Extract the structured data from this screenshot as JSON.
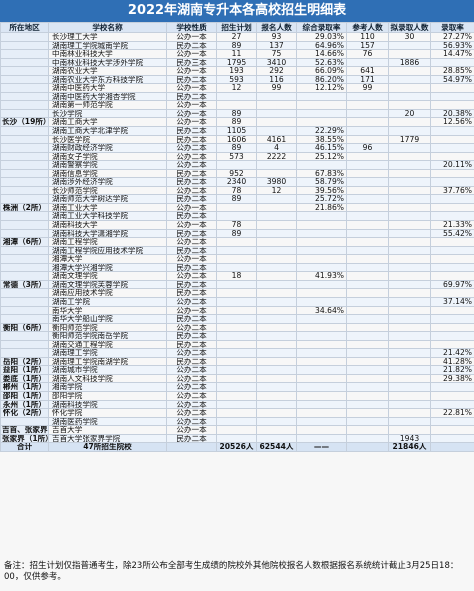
{
  "title": "2022年湖南专升本各高校招生明细表",
  "headers": [
    "所在地区",
    "学校名称",
    "学校性质",
    "招生计划",
    "报名人数",
    "综合录取率",
    "参考人数",
    "拟录取人数",
    "录取率"
  ],
  "rows": [
    [
      "",
      "长沙理工大学",
      "公办一本",
      "27",
      "93",
      "29.03%",
      "110",
      "30",
      "27.27%"
    ],
    [
      "",
      "湖南理工学院城南学院",
      "民办二本",
      "89",
      "137",
      "64.96%",
      "157",
      "",
      "56.93%"
    ],
    [
      "",
      "中南林业科技大学",
      "公办一本",
      "11",
      "75",
      "14.66%",
      "76",
      "",
      "14.47%"
    ],
    [
      "",
      "中南林业科技大学涉外学院",
      "民办三本",
      "1795",
      "3410",
      "52.63%",
      "",
      "1886",
      ""
    ],
    [
      "",
      "湖南农业大学",
      "公办一本",
      "193",
      "292",
      "66.09%",
      "641",
      "",
      "28.85%"
    ],
    [
      "",
      "湖南农业大学东方科技学院",
      "民办二本",
      "593",
      "116",
      "86.20%",
      "171",
      "",
      "54.97%"
    ],
    [
      "",
      "湖南中医药大学",
      "公办一本",
      "12",
      "99",
      "12.12%",
      "99",
      "",
      ""
    ],
    [
      "",
      "湖南中医药大学湘杏学院",
      "民办二本",
      "",
      "",
      "",
      "",
      "",
      ""
    ],
    [
      "",
      "湖南第一师范学院",
      "公办一本",
      "",
      "",
      "",
      "",
      "",
      ""
    ],
    [
      "",
      "长沙学院",
      "公办一本",
      "89",
      "",
      "",
      "",
      "20",
      "20.38%"
    ],
    [
      "长沙（19所）",
      "湖南工商大学",
      "公办一本",
      "89",
      "",
      "",
      "",
      "",
      "12.56%"
    ],
    [
      "",
      "湖南工商大学北津学院",
      "民办二本",
      "1105",
      "",
      "22.29%",
      "",
      "",
      ""
    ],
    [
      "",
      "长沙医学院",
      "民办二本",
      "1606",
      "4161",
      "38.55%",
      "",
      "1779",
      ""
    ],
    [
      "",
      "湖南财政经济学院",
      "公办二本",
      "89",
      "4",
      "46.15%",
      "96",
      "",
      ""
    ],
    [
      "",
      "湖南女子学院",
      "公办二本",
      "573",
      "2222",
      "25.12%",
      "",
      "",
      ""
    ],
    [
      "",
      "湖南警察学院",
      "公办二本",
      "",
      "",
      "",
      "",
      "",
      "20.11%"
    ],
    [
      "",
      "湖南信息学院",
      "民办二本",
      "952",
      "",
      "67.83%",
      "",
      "",
      ""
    ],
    [
      "",
      "湖南涉外经济学院",
      "民办二本",
      "2340",
      "3980",
      "58.79%",
      "",
      "",
      ""
    ],
    [
      "",
      "长沙师范学院",
      "公办二本",
      "78",
      "12",
      "39.56%",
      "",
      "",
      "37.76%"
    ],
    [
      "",
      "湖南师范大学树达学院",
      "民办二本",
      "89",
      "",
      "25.72%",
      "",
      "",
      ""
    ],
    [
      "株洲（2所）",
      "湖南工业大学",
      "公办一本",
      "",
      "",
      "21.86%",
      "",
      "",
      ""
    ],
    [
      "",
      "湖南工业大学科技学院",
      "民办二本",
      "",
      "",
      "",
      "",
      "",
      ""
    ],
    [
      "",
      "湖南科技大学",
      "公办一本",
      "78",
      "",
      "",
      "",
      "",
      "21.33%"
    ],
    [
      "",
      "湖南科技大学潇湘学院",
      "民办二本",
      "89",
      "",
      "",
      "",
      "",
      "55.42%"
    ],
    [
      "湘潭（6所）",
      "湖南工程学院",
      "公办二本",
      "",
      "",
      "",
      "",
      "",
      ""
    ],
    [
      "",
      "湖南工程学院应用技术学院",
      "民办二本",
      "",
      "",
      "",
      "",
      "",
      ""
    ],
    [
      "",
      "湘潭大学",
      "公办一本",
      "",
      "",
      "",
      "",
      "",
      ""
    ],
    [
      "",
      "湘潭大学兴湘学院",
      "民办二本",
      "",
      "",
      "",
      "",
      "",
      ""
    ],
    [
      "",
      "湖南文理学院",
      "公办二本",
      "18",
      "",
      "41.93%",
      "",
      "",
      ""
    ],
    [
      "常德（3所）",
      "湖南文理学院芙蓉学院",
      "民办二本",
      "",
      "",
      "",
      "",
      "",
      "69.97%"
    ],
    [
      "",
      "湖南应用技术学院",
      "民办二本",
      "",
      "",
      "",
      "",
      "",
      ""
    ],
    [
      "",
      "湖南工学院",
      "公办二本",
      "",
      "",
      "",
      "",
      "",
      "37.14%"
    ],
    [
      "",
      "南华大学",
      "公办一本",
      "",
      "",
      "34.64%",
      "",
      "",
      ""
    ],
    [
      "",
      "南华大学船山学院",
      "民办二本",
      "",
      "",
      "",
      "",
      "",
      ""
    ],
    [
      "衡阳（6所）",
      "衡阳师范学院",
      "公办二本",
      "",
      "",
      "",
      "",
      "",
      ""
    ],
    [
      "",
      "衡阳师范学院南岳学院",
      "民办二本",
      "",
      "",
      "",
      "",
      "",
      ""
    ],
    [
      "",
      "湖南交通工程学院",
      "民办二本",
      "",
      "",
      "",
      "",
      "",
      ""
    ],
    [
      "",
      "湖南理工学院",
      "公办二本",
      "",
      "",
      "",
      "",
      "",
      "21.42%"
    ],
    [
      "岳阳（2所）",
      "湖南理工学院南湖学院",
      "民办二本",
      "",
      "",
      "",
      "",
      "",
      "41.28%"
    ],
    [
      "益阳（1所）",
      "湖南城市学院",
      "公办二本",
      "",
      "",
      "",
      "",
      "",
      "21.82%"
    ],
    [
      "娄底（1所）",
      "湖南人文科技学院",
      "公办二本",
      "",
      "",
      "",
      "",
      "",
      "29.38%"
    ],
    [
      "郴州（1所）",
      "湘南学院",
      "公办二本",
      "",
      "",
      "",
      "",
      "",
      ""
    ],
    [
      "邵阳（1所）",
      "邵阳学院",
      "公办二本",
      "",
      "",
      "",
      "",
      "",
      ""
    ],
    [
      "永州（1所）",
      "湖南科技学院",
      "公办二本",
      "",
      "",
      "",
      "",
      "",
      ""
    ],
    [
      "怀化（2所）",
      "怀化学院",
      "公办二本",
      "",
      "",
      "",
      "",
      "",
      "22.81%"
    ],
    [
      "",
      "湖南医药学院",
      "公办二本",
      "",
      "",
      "",
      "",
      "",
      ""
    ],
    [
      "吉首、张家界",
      "吉首大学",
      "公办一本",
      "",
      "",
      "",
      "",
      "",
      ""
    ],
    [
      "张家界（1所）",
      "吉首大学张家界学院",
      "民办二本",
      "",
      "",
      "",
      "",
      "1943",
      ""
    ]
  ],
  "totals": [
    "合计",
    "47所招生院校",
    "",
    "20526人",
    "62544人",
    "——",
    "",
    "21846人",
    ""
  ],
  "note": "备注：招生计划仅指普通考生，除23所公布全部考生成绩的院校外其他院校报名人数根据报名系统统计截止3月25日18：00，仅供参考。"
}
